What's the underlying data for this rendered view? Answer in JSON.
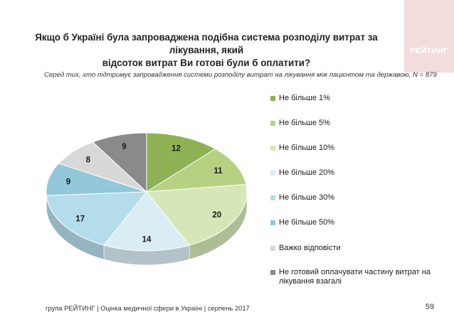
{
  "slide": {
    "title_line1": "Якщо б Україні була запроваджена подібна система розподілу витрат за лікування, який",
    "title_line2": "відсоток витрат Ви готові були б оплатити?",
    "subtitle": "Серед тих, хто підтримує запровадження системи розподілу витрат на лікування між пацієнтом та державою, N = 879",
    "logo_text": "РЕЙТИНГ",
    "footer": "група РЕЙТИНГ  |  Оцінка медичної сфери в Україні  |  серпень 2017",
    "page_number": "59"
  },
  "chart_data": {
    "type": "pie",
    "style": "3d",
    "legend_position": "right",
    "categories": [
      "Не більше 1%",
      "Не більше 5%",
      "Не більше 10%",
      "Не більше 20%",
      "Не більше 30%",
      "Не більше 50%",
      "Важко відповісти",
      "Не готовий оплачувати частину витрат на лікування взагалі"
    ],
    "values": [
      12,
      11,
      20,
      14,
      17,
      9,
      8,
      9
    ],
    "colors": [
      "#8db253",
      "#b6d182",
      "#d5e6b7",
      "#daedf4",
      "#b4dceb",
      "#92c8d9",
      "#d8d8d8",
      "#8a8a8a"
    ]
  }
}
